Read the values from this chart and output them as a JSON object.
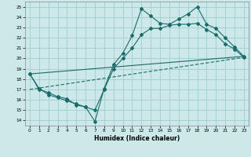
{
  "xlabel": "Humidex (Indice chaleur)",
  "bg_color": "#cce8e8",
  "grid_color": "#a8d0d0",
  "line_color": "#1a6b6b",
  "xlim": [
    -0.5,
    23.5
  ],
  "ylim": [
    13.5,
    25.5
  ],
  "xticks": [
    0,
    1,
    2,
    3,
    4,
    5,
    6,
    7,
    8,
    9,
    10,
    11,
    12,
    13,
    14,
    15,
    16,
    17,
    18,
    19,
    20,
    21,
    22,
    23
  ],
  "yticks": [
    14,
    15,
    16,
    17,
    18,
    19,
    20,
    21,
    22,
    23,
    24,
    25
  ],
  "line1_x": [
    0,
    1,
    2,
    3,
    4,
    5,
    6,
    7,
    8,
    9,
    10,
    11,
    12,
    13,
    14,
    15,
    16,
    17,
    18,
    19,
    20,
    21,
    22,
    23
  ],
  "line1_y": [
    18.5,
    17.0,
    16.7,
    16.3,
    16.1,
    15.5,
    15.3,
    13.9,
    17.1,
    19.4,
    20.5,
    22.2,
    24.8,
    24.1,
    23.4,
    23.3,
    23.8,
    24.3,
    25.0,
    23.3,
    22.9,
    22.0,
    21.1,
    20.2
  ],
  "line2_x": [
    0,
    1,
    2,
    3,
    4,
    5,
    6,
    7,
    8,
    9,
    10,
    11,
    12,
    13,
    14,
    15,
    16,
    17,
    18,
    19,
    20,
    21,
    22,
    23
  ],
  "line2_y": [
    18.5,
    17.1,
    16.5,
    16.2,
    15.9,
    15.6,
    15.3,
    15.0,
    17.0,
    19.0,
    20.0,
    21.0,
    22.3,
    22.9,
    22.9,
    23.2,
    23.3,
    23.3,
    23.4,
    22.8,
    22.3,
    21.4,
    20.9,
    20.1
  ],
  "line3_x": [
    0,
    23
  ],
  "line3_y": [
    18.5,
    20.2
  ],
  "line4_x": [
    0,
    23
  ],
  "line4_y": [
    17.0,
    20.1
  ]
}
